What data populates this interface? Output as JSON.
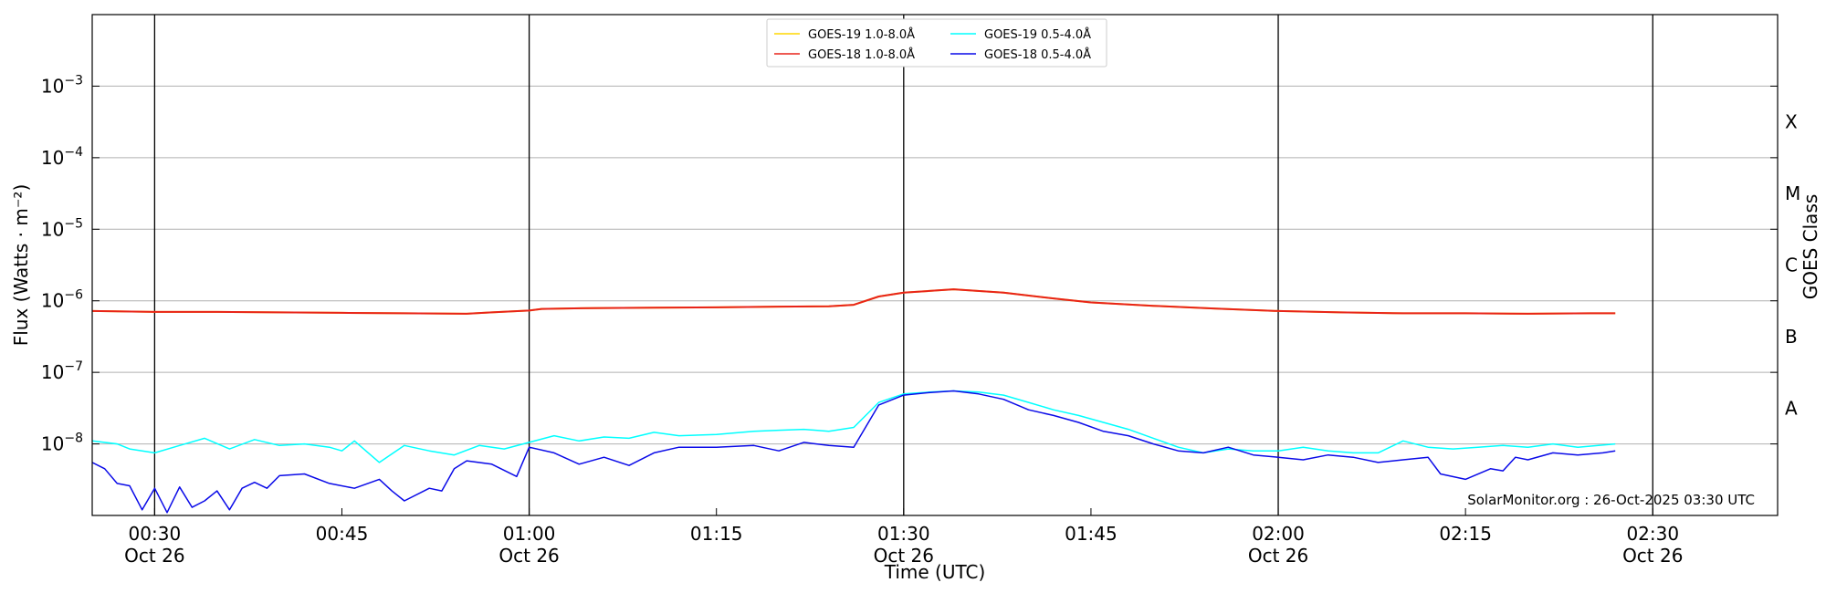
{
  "chart_data": {
    "type": "line",
    "xlabel": "Time (UTC)",
    "ylabel": "Flux (Watts · m⁻²)",
    "y2label": "GOES Class",
    "yscale": "log",
    "ylim": [
      1e-09,
      0.01
    ],
    "xlim": [
      "2025-10-26 00:25",
      "2025-10-26 02:40"
    ],
    "grid": "horizontal",
    "legend_position": "top-center",
    "credit": "SolarMonitor.org : 26-Oct-2025 03:30 UTC",
    "x_ticks": [
      {
        "time": "00:30",
        "date": "Oct 26"
      },
      {
        "time": "00:45",
        "date": ""
      },
      {
        "time": "01:00",
        "date": "Oct 26"
      },
      {
        "time": "01:15",
        "date": ""
      },
      {
        "time": "01:30",
        "date": "Oct 26"
      },
      {
        "time": "01:45",
        "date": ""
      },
      {
        "time": "02:00",
        "date": "Oct 26"
      },
      {
        "time": "02:15",
        "date": ""
      },
      {
        "time": "02:30",
        "date": "Oct 26"
      }
    ],
    "day_lines": [
      "00:30",
      "01:00",
      "01:30",
      "02:00",
      "02:30"
    ],
    "y_ticks": [
      {
        "value": 0.001,
        "base": "10",
        "exp": "−3"
      },
      {
        "value": 0.0001,
        "base": "10",
        "exp": "−4"
      },
      {
        "value": 1e-05,
        "base": "10",
        "exp": "−5"
      },
      {
        "value": 1e-06,
        "base": "10",
        "exp": "−6"
      },
      {
        "value": 1e-07,
        "base": "10",
        "exp": "−7"
      },
      {
        "value": 1e-08,
        "base": "10",
        "exp": "−8"
      }
    ],
    "goes_classes": [
      {
        "label": "X",
        "value": 0.0001
      },
      {
        "label": "M",
        "value": 1e-05
      },
      {
        "label": "C",
        "value": 1e-06
      },
      {
        "label": "B",
        "value": 1e-07
      },
      {
        "label": "A",
        "value": 1e-08
      }
    ],
    "series": [
      {
        "name": "GOES-19 1.0-8.0Å",
        "color": "#ffd700",
        "points": [
          [
            "00:25",
            7.2e-07
          ],
          [
            "00:30",
            7e-07
          ],
          [
            "00:35",
            7e-07
          ],
          [
            "00:40",
            6.9e-07
          ],
          [
            "00:45",
            6.8e-07
          ],
          [
            "00:50",
            6.7e-07
          ],
          [
            "00:55",
            6.6e-07
          ],
          [
            "00:57",
            6.9e-07
          ],
          [
            "01:00",
            7.3e-07
          ],
          [
            "01:01",
            7.7e-07
          ],
          [
            "01:05",
            7.9e-07
          ],
          [
            "01:10",
            8e-07
          ],
          [
            "01:15",
            8.1e-07
          ],
          [
            "01:20",
            8.3e-07
          ],
          [
            "01:24",
            8.4e-07
          ],
          [
            "01:26",
            8.8e-07
          ],
          [
            "01:28",
            1.15e-06
          ],
          [
            "01:30",
            1.3e-06
          ],
          [
            "01:34",
            1.45e-06
          ],
          [
            "01:38",
            1.3e-06
          ],
          [
            "01:42",
            1.08e-06
          ],
          [
            "01:45",
            9.5e-07
          ],
          [
            "01:50",
            8.5e-07
          ],
          [
            "01:55",
            7.8e-07
          ],
          [
            "02:00",
            7.2e-07
          ],
          [
            "02:05",
            6.9e-07
          ],
          [
            "02:10",
            6.7e-07
          ],
          [
            "02:15",
            6.7e-07
          ],
          [
            "02:20",
            6.6e-07
          ],
          [
            "02:25",
            6.7e-07
          ],
          [
            "02:27",
            6.7e-07
          ]
        ]
      },
      {
        "name": "GOES-18 1.0-8.0Å",
        "color": "#e8231a",
        "points": [
          [
            "00:25",
            7.2e-07
          ],
          [
            "00:30",
            7e-07
          ],
          [
            "00:35",
            7e-07
          ],
          [
            "00:40",
            6.9e-07
          ],
          [
            "00:45",
            6.8e-07
          ],
          [
            "00:50",
            6.7e-07
          ],
          [
            "00:55",
            6.6e-07
          ],
          [
            "00:57",
            6.9e-07
          ],
          [
            "01:00",
            7.3e-07
          ],
          [
            "01:01",
            7.7e-07
          ],
          [
            "01:05",
            7.9e-07
          ],
          [
            "01:10",
            8e-07
          ],
          [
            "01:15",
            8.1e-07
          ],
          [
            "01:20",
            8.3e-07
          ],
          [
            "01:24",
            8.4e-07
          ],
          [
            "01:26",
            8.8e-07
          ],
          [
            "01:28",
            1.15e-06
          ],
          [
            "01:30",
            1.3e-06
          ],
          [
            "01:34",
            1.45e-06
          ],
          [
            "01:38",
            1.3e-06
          ],
          [
            "01:42",
            1.08e-06
          ],
          [
            "01:45",
            9.5e-07
          ],
          [
            "01:50",
            8.5e-07
          ],
          [
            "01:55",
            7.8e-07
          ],
          [
            "02:00",
            7.2e-07
          ],
          [
            "02:05",
            6.9e-07
          ],
          [
            "02:10",
            6.7e-07
          ],
          [
            "02:15",
            6.7e-07
          ],
          [
            "02:20",
            6.6e-07
          ],
          [
            "02:25",
            6.7e-07
          ],
          [
            "02:27",
            6.7e-07
          ]
        ]
      },
      {
        "name": "GOES-19 0.5-4.0Å",
        "color": "#00ffff",
        "points": [
          [
            "00:25",
            1.1e-08
          ],
          [
            "00:27",
            1e-08
          ],
          [
            "00:28",
            8.5e-09
          ],
          [
            "00:30",
            7.5e-09
          ],
          [
            "00:32",
            9.5e-09
          ],
          [
            "00:34",
            1.2e-08
          ],
          [
            "00:36",
            8.5e-09
          ],
          [
            "00:38",
            1.15e-08
          ],
          [
            "00:40",
            9.5e-09
          ],
          [
            "00:42",
            1e-08
          ],
          [
            "00:44",
            9e-09
          ],
          [
            "00:45",
            8e-09
          ],
          [
            "00:46",
            1.1e-08
          ],
          [
            "00:48",
            5.5e-09
          ],
          [
            "00:50",
            9.5e-09
          ],
          [
            "00:52",
            8e-09
          ],
          [
            "00:54",
            7e-09
          ],
          [
            "00:56",
            9.5e-09
          ],
          [
            "00:58",
            8.5e-09
          ],
          [
            "01:00",
            1.05e-08
          ],
          [
            "01:02",
            1.3e-08
          ],
          [
            "01:04",
            1.1e-08
          ],
          [
            "01:06",
            1.25e-08
          ],
          [
            "01:08",
            1.2e-08
          ],
          [
            "01:10",
            1.45e-08
          ],
          [
            "01:12",
            1.3e-08
          ],
          [
            "01:15",
            1.35e-08
          ],
          [
            "01:18",
            1.5e-08
          ],
          [
            "01:20",
            1.55e-08
          ],
          [
            "01:22",
            1.6e-08
          ],
          [
            "01:24",
            1.5e-08
          ],
          [
            "01:26",
            1.7e-08
          ],
          [
            "01:28",
            3.8e-08
          ],
          [
            "01:30",
            5e-08
          ],
          [
            "01:32",
            5.3e-08
          ],
          [
            "01:34",
            5.5e-08
          ],
          [
            "01:36",
            5.3e-08
          ],
          [
            "01:38",
            4.8e-08
          ],
          [
            "01:40",
            3.8e-08
          ],
          [
            "01:42",
            3e-08
          ],
          [
            "01:44",
            2.5e-08
          ],
          [
            "01:46",
            2e-08
          ],
          [
            "01:48",
            1.6e-08
          ],
          [
            "01:50",
            1.2e-08
          ],
          [
            "01:52",
            9e-09
          ],
          [
            "01:54",
            7.5e-09
          ],
          [
            "01:56",
            8.5e-09
          ],
          [
            "01:58",
            8e-09
          ],
          [
            "02:00",
            8e-09
          ],
          [
            "02:02",
            9e-09
          ],
          [
            "02:04",
            8e-09
          ],
          [
            "02:06",
            7.5e-09
          ],
          [
            "02:08",
            7.5e-09
          ],
          [
            "02:10",
            1.1e-08
          ],
          [
            "02:12",
            9e-09
          ],
          [
            "02:14",
            8.5e-09
          ],
          [
            "02:16",
            9e-09
          ],
          [
            "02:18",
            9.5e-09
          ],
          [
            "02:20",
            9e-09
          ],
          [
            "02:22",
            1e-08
          ],
          [
            "02:24",
            9e-09
          ],
          [
            "02:27",
            1e-08
          ]
        ]
      },
      {
        "name": "GOES-18 0.5-4.0Å",
        "color": "#0a0ae8",
        "points": [
          [
            "00:25",
            5.5e-09
          ],
          [
            "00:26",
            4.5e-09
          ],
          [
            "00:27",
            2.8e-09
          ],
          [
            "00:28",
            2.6e-09
          ],
          [
            "00:29",
            1.2e-09
          ],
          [
            "00:30",
            2.4e-09
          ],
          [
            "00:31",
            1.1e-09
          ],
          [
            "00:32",
            2.5e-09
          ],
          [
            "00:33",
            1.3e-09
          ],
          [
            "00:34",
            1.6e-09
          ],
          [
            "00:35",
            2.2e-09
          ],
          [
            "00:36",
            1.2e-09
          ],
          [
            "00:37",
            2.4e-09
          ],
          [
            "00:38",
            2.9e-09
          ],
          [
            "00:39",
            2.4e-09
          ],
          [
            "00:40",
            3.6e-09
          ],
          [
            "00:42",
            3.8e-09
          ],
          [
            "00:44",
            2.8e-09
          ],
          [
            "00:46",
            2.4e-09
          ],
          [
            "00:48",
            3.2e-09
          ],
          [
            "00:49",
            2.2e-09
          ],
          [
            "00:50",
            1.6e-09
          ],
          [
            "00:52",
            2.4e-09
          ],
          [
            "00:53",
            2.2e-09
          ],
          [
            "00:54",
            4.5e-09
          ],
          [
            "00:55",
            5.8e-09
          ],
          [
            "00:57",
            5.2e-09
          ],
          [
            "00:59",
            3.5e-09
          ],
          [
            "01:00",
            9e-09
          ],
          [
            "01:02",
            7.5e-09
          ],
          [
            "01:04",
            5.2e-09
          ],
          [
            "01:06",
            6.5e-09
          ],
          [
            "01:08",
            5e-09
          ],
          [
            "01:10",
            7.5e-09
          ],
          [
            "01:12",
            9e-09
          ],
          [
            "01:15",
            9e-09
          ],
          [
            "01:18",
            9.5e-09
          ],
          [
            "01:20",
            8e-09
          ],
          [
            "01:22",
            1.05e-08
          ],
          [
            "01:24",
            9.5e-09
          ],
          [
            "01:26",
            9e-09
          ],
          [
            "01:28",
            3.5e-08
          ],
          [
            "01:30",
            4.8e-08
          ],
          [
            "01:32",
            5.2e-08
          ],
          [
            "01:34",
            5.5e-08
          ],
          [
            "01:36",
            5e-08
          ],
          [
            "01:38",
            4.2e-08
          ],
          [
            "01:40",
            3e-08
          ],
          [
            "01:42",
            2.5e-08
          ],
          [
            "01:44",
            2e-08
          ],
          [
            "01:46",
            1.5e-08
          ],
          [
            "01:48",
            1.3e-08
          ],
          [
            "01:50",
            1e-08
          ],
          [
            "01:52",
            8e-09
          ],
          [
            "01:54",
            7.5e-09
          ],
          [
            "01:56",
            9e-09
          ],
          [
            "01:58",
            7e-09
          ],
          [
            "02:00",
            6.5e-09
          ],
          [
            "02:02",
            6e-09
          ],
          [
            "02:04",
            7e-09
          ],
          [
            "02:06",
            6.5e-09
          ],
          [
            "02:08",
            5.5e-09
          ],
          [
            "02:10",
            6e-09
          ],
          [
            "02:12",
            6.5e-09
          ],
          [
            "02:13",
            3.8e-09
          ],
          [
            "02:15",
            3.2e-09
          ],
          [
            "02:17",
            4.5e-09
          ],
          [
            "02:18",
            4.2e-09
          ],
          [
            "02:19",
            6.5e-09
          ],
          [
            "02:20",
            6e-09
          ],
          [
            "02:22",
            7.5e-09
          ],
          [
            "02:24",
            7e-09
          ],
          [
            "02:26",
            7.5e-09
          ],
          [
            "02:27",
            8e-09
          ]
        ]
      }
    ]
  }
}
